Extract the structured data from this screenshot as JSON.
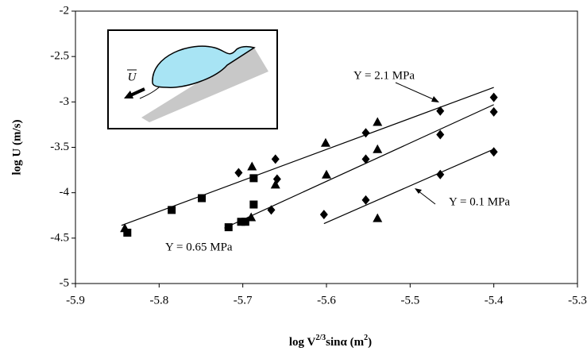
{
  "chart_data": {
    "type": "scatter",
    "xlabel_parts": [
      "log V",
      "2/3",
      "sinα (m",
      "2",
      ")"
    ],
    "ylabel": "log U (m/s)",
    "xlim": [
      -5.9,
      -5.3
    ],
    "xticks": [
      -5.9,
      -5.8,
      -5.7,
      -5.6,
      -5.5,
      -5.4,
      -5.3
    ],
    "ylim": [
      -5,
      -2
    ],
    "yticks": [
      -5,
      -4.5,
      -4,
      -3.5,
      -3,
      -2.5,
      -2
    ],
    "grid": false,
    "series": [
      {
        "marker": "square",
        "color": "#000000",
        "x": [
          -5.838,
          -5.785,
          -5.749,
          -5.717,
          -5.702,
          -5.697,
          -5.687,
          -5.687
        ],
        "values": [
          -4.44,
          -4.19,
          -4.06,
          -4.38,
          -4.32,
          -4.32,
          -4.13,
          -3.84
        ]
      },
      {
        "marker": "triangle",
        "color": "#000000",
        "x": [
          -5.841,
          -5.689,
          -5.69,
          -5.661,
          -5.601,
          -5.6,
          -5.539,
          -5.539,
          -5.539
        ],
        "values": [
          -4.39,
          -3.71,
          -4.27,
          -3.91,
          -3.45,
          -3.8,
          -3.22,
          -3.52,
          -4.28
        ]
      },
      {
        "marker": "diamond",
        "color": "#000000",
        "x": [
          -5.705,
          -5.666,
          -5.661,
          -5.659,
          -5.603,
          -5.553,
          -5.553,
          -5.553,
          -5.464,
          -5.464,
          -5.464,
          -5.4,
          -5.4,
          -5.4
        ],
        "values": [
          -3.78,
          -4.19,
          -3.63,
          -3.85,
          -4.24,
          -3.34,
          -3.63,
          -4.08,
          -3.1,
          -3.36,
          -3.8,
          -2.95,
          -3.11,
          -3.55
        ]
      }
    ],
    "fit_lines": [
      {
        "label": "Y = 2.1 MPa",
        "x": [
          -5.845,
          -5.4
        ],
        "values": [
          -4.36,
          -2.84
        ]
      },
      {
        "label": "Y = 0.65 MPa",
        "x": [
          -5.722,
          -5.4
        ],
        "values": [
          -4.39,
          -3.03
        ]
      },
      {
        "label": "Y = 0.1 MPa",
        "x": [
          -5.603,
          -5.4
        ],
        "values": [
          -4.34,
          -3.52
        ]
      }
    ],
    "inset_label": "U"
  }
}
